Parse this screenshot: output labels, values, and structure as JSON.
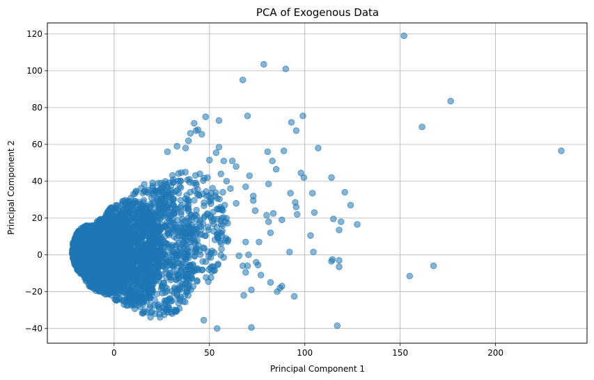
{
  "chart_data": {
    "type": "scatter",
    "title": "PCA of Exogenous Data",
    "xlabel": "Principal Component 1",
    "ylabel": "Principal Component 2",
    "xlim": [
      -35,
      248
    ],
    "ylim": [
      -48,
      126
    ],
    "xticks": [
      0,
      50,
      100,
      150,
      200
    ],
    "yticks": [
      -40,
      -20,
      0,
      20,
      40,
      60,
      80,
      100,
      120
    ],
    "grid": true,
    "color": "#1f77b4",
    "alpha": 0.55,
    "points": [
      [
        152,
        119
      ],
      [
        234.5,
        56.5
      ],
      [
        176.5,
        83.5
      ],
      [
        161.5,
        69.5
      ],
      [
        167.5,
        -6
      ],
      [
        155,
        -11.5
      ],
      [
        78.5,
        103.5
      ],
      [
        90,
        101
      ],
      [
        67.5,
        95
      ],
      [
        70,
        75.5
      ],
      [
        99,
        75.5
      ],
      [
        93,
        72
      ],
      [
        95.5,
        67.5
      ],
      [
        107,
        58
      ],
      [
        89,
        56.5
      ],
      [
        80.5,
        56
      ],
      [
        83,
        51
      ],
      [
        85,
        46.5
      ],
      [
        98,
        44.5
      ],
      [
        99.5,
        42
      ],
      [
        114,
        42
      ],
      [
        71,
        43
      ],
      [
        69,
        37
      ],
      [
        81,
        38.5
      ],
      [
        73,
        32
      ],
      [
        73,
        29.5
      ],
      [
        92.5,
        33.5
      ],
      [
        104,
        33.5
      ],
      [
        121,
        34
      ],
      [
        95,
        28.5
      ],
      [
        95.5,
        26
      ],
      [
        124,
        27
      ],
      [
        105,
        23
      ],
      [
        74,
        24
      ],
      [
        80,
        21.5
      ],
      [
        83.5,
        22.5
      ],
      [
        81,
        18
      ],
      [
        88,
        19
      ],
      [
        96,
        22
      ],
      [
        115,
        19.5
      ],
      [
        119,
        18
      ],
      [
        127.5,
        16.5
      ],
      [
        118,
        13.5
      ],
      [
        103,
        10.5
      ],
      [
        82,
        12
      ],
      [
        92,
        1.5
      ],
      [
        104.5,
        1.5
      ],
      [
        76,
        7
      ],
      [
        69,
        7
      ],
      [
        65.5,
        -0.5
      ],
      [
        70.5,
        0
      ],
      [
        114,
        -3.5
      ],
      [
        114.5,
        -2.5
      ],
      [
        118,
        -3
      ],
      [
        118,
        -6.5
      ],
      [
        74.5,
        -4
      ],
      [
        75.5,
        -5.5
      ],
      [
        77,
        -11
      ],
      [
        70,
        -6
      ],
      [
        67.5,
        -6
      ],
      [
        69,
        -9.5
      ],
      [
        82,
        -15
      ],
      [
        87,
        -18
      ],
      [
        88,
        -17
      ],
      [
        85.5,
        -20
      ],
      [
        94.5,
        -22.5
      ],
      [
        72,
        -19
      ],
      [
        68,
        -22
      ],
      [
        72,
        -39.5
      ],
      [
        117,
        -38.5
      ],
      [
        54,
        -40
      ],
      [
        47,
        -35.5
      ],
      [
        48,
        75
      ],
      [
        55,
        73
      ],
      [
        42,
        71.5
      ],
      [
        46,
        65.5
      ],
      [
        43,
        67.5
      ],
      [
        44,
        68
      ],
      [
        40,
        66
      ],
      [
        39,
        62
      ],
      [
        33,
        59
      ],
      [
        28,
        56
      ],
      [
        37.5,
        58
      ],
      [
        55,
        58.5
      ],
      [
        57.5,
        51
      ],
      [
        50,
        51.5
      ],
      [
        53.5,
        55.5
      ],
      [
        62,
        51
      ],
      [
        64,
        48
      ],
      [
        49,
        42
      ],
      [
        45,
        44
      ],
      [
        56,
        44
      ],
      [
        59,
        40
      ],
      [
        61,
        36
      ],
      [
        57,
        34
      ],
      [
        53,
        32
      ],
      [
        58,
        27
      ],
      [
        54,
        25
      ],
      [
        64,
        28
      ],
      [
        47,
        20
      ]
    ],
    "dense_cloud": [
      {
        "x": [
          -22,
          -5
        ],
        "y": [
          -12,
          16
        ],
        "n": 1300
      },
      {
        "x": [
          -18,
          10
        ],
        "y": [
          -22,
          20
        ],
        "n": 1100
      },
      {
        "x": [
          -10,
          25
        ],
        "y": [
          -28,
          30
        ],
        "n": 900
      },
      {
        "x": [
          0,
          45
        ],
        "y": [
          -35,
          40
        ],
        "n": 600
      },
      {
        "x": [
          15,
          60
        ],
        "y": [
          -20,
          45
        ],
        "n": 300
      }
    ]
  }
}
